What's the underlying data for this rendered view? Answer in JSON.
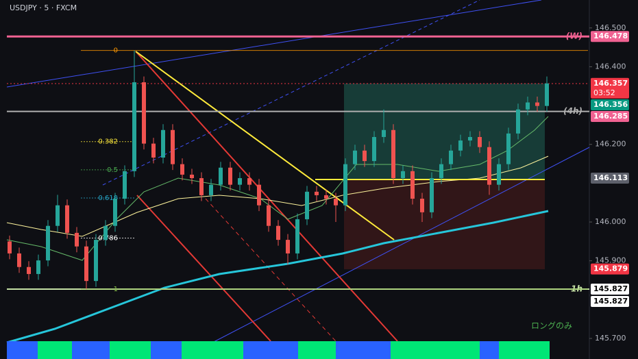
{
  "chart_data": {
    "type": "candlestick",
    "title": "USDJPY · 5 · FXCM",
    "ylim": [
      145.647,
      146.572
    ],
    "yticks": [
      {
        "value": 146.5,
        "label": "146.500"
      },
      {
        "value": 146.4,
        "label": "146.400"
      },
      {
        "value": 146.2,
        "label": "146.200"
      },
      {
        "value": 146.0,
        "label": "146.000"
      },
      {
        "value": 145.9,
        "label": "145.900"
      },
      {
        "value": 145.7,
        "label": "145.700"
      }
    ],
    "up_color": "#26a69a",
    "down_color": "#ef5350",
    "candles": [
      [
        145.95,
        145.965,
        145.904,
        145.919
      ],
      [
        145.919,
        145.934,
        145.869,
        145.884
      ],
      [
        145.884,
        145.899,
        145.851,
        145.866
      ],
      [
        145.866,
        145.916,
        145.851,
        145.901
      ],
      [
        145.901,
        146.005,
        145.886,
        145.99
      ],
      [
        145.99,
        146.07,
        145.975,
        146.043
      ],
      [
        146.043,
        146.058,
        145.957,
        145.972
      ],
      [
        145.972,
        145.987,
        145.922,
        145.937
      ],
      [
        145.937,
        145.952,
        145.827,
        145.848
      ],
      [
        145.848,
        145.969,
        145.833,
        145.954
      ],
      [
        145.954,
        146.005,
        145.939,
        145.99
      ],
      [
        145.99,
        146.075,
        145.975,
        146.06
      ],
      [
        146.06,
        146.146,
        146.045,
        146.131
      ],
      [
        146.131,
        146.442,
        146.116,
        146.36
      ],
      [
        146.36,
        146.375,
        146.187,
        146.202
      ],
      [
        146.202,
        146.217,
        146.151,
        146.166
      ],
      [
        146.166,
        146.252,
        146.151,
        146.237
      ],
      [
        146.237,
        146.252,
        146.134,
        146.149
      ],
      [
        146.149,
        146.164,
        146.107,
        146.122
      ],
      [
        146.122,
        146.137,
        146.098,
        146.113
      ],
      [
        146.113,
        146.128,
        146.054,
        146.069
      ],
      [
        146.069,
        146.111,
        146.054,
        146.096
      ],
      [
        146.096,
        146.155,
        146.081,
        146.14
      ],
      [
        146.14,
        146.155,
        146.081,
        146.096
      ],
      [
        146.096,
        146.128,
        146.081,
        146.113
      ],
      [
        146.113,
        146.128,
        146.081,
        146.096
      ],
      [
        146.096,
        146.111,
        146.028,
        146.043
      ],
      [
        146.043,
        146.058,
        145.975,
        145.99
      ],
      [
        145.99,
        146.005,
        145.939,
        145.954
      ],
      [
        145.954,
        145.969,
        145.89,
        145.919
      ],
      [
        145.919,
        146.022,
        145.904,
        146.007
      ],
      [
        146.007,
        146.093,
        145.992,
        146.078
      ],
      [
        146.078,
        146.093,
        146.054,
        146.069
      ],
      [
        146.069,
        146.084,
        146.045,
        146.06
      ],
      [
        146.06,
        146.075,
        146.0,
        146.043
      ],
      [
        146.043,
        146.164,
        146.028,
        146.149
      ],
      [
        146.149,
        146.199,
        146.134,
        146.184
      ],
      [
        146.184,
        146.199,
        146.142,
        146.157
      ],
      [
        146.157,
        146.234,
        146.142,
        146.219
      ],
      [
        146.219,
        146.29,
        146.204,
        146.237
      ],
      [
        146.237,
        146.252,
        146.098,
        146.113
      ],
      [
        146.113,
        146.146,
        146.098,
        146.131
      ],
      [
        146.131,
        146.146,
        146.045,
        146.06
      ],
      [
        146.06,
        146.075,
        146.0,
        146.025
      ],
      [
        146.025,
        146.128,
        146.01,
        146.113
      ],
      [
        146.113,
        146.164,
        146.098,
        146.149
      ],
      [
        146.149,
        146.199,
        146.134,
        146.184
      ],
      [
        146.184,
        146.225,
        146.169,
        146.21
      ],
      [
        146.21,
        146.234,
        146.195,
        146.219
      ],
      [
        146.219,
        146.234,
        146.178,
        146.193
      ],
      [
        146.193,
        146.208,
        146.07,
        146.096
      ],
      [
        146.096,
        146.164,
        146.081,
        146.149
      ],
      [
        146.149,
        146.243,
        146.134,
        146.228
      ],
      [
        146.228,
        146.305,
        146.213,
        146.29
      ],
      [
        146.29,
        146.323,
        146.275,
        146.308
      ],
      [
        146.308,
        146.323,
        146.284,
        146.299
      ],
      [
        146.299,
        146.375,
        146.284,
        146.357
      ]
    ],
    "fib": {
      "start": 146.442,
      "end": 145.827,
      "levels": [
        0,
        0.382,
        0.5,
        0.618,
        0.786,
        1
      ],
      "colors": [
        "#ff9800",
        "#ffeb3b",
        "#4caf50",
        "#26a6c9",
        "#ffffff",
        "#8bc34a"
      ]
    },
    "level_lines": [
      {
        "label": "(W)",
        "value": 146.478,
        "color": "#f06292"
      },
      {
        "label": "(4h)",
        "value": 146.285,
        "color": "#b0b0b0"
      },
      {
        "label": "1h",
        "value": 145.827,
        "color": "#c5e1a5"
      }
    ],
    "price_labels": [
      {
        "value": 146.478,
        "color": "#f06292"
      },
      {
        "value": 146.357,
        "color": "#f23645",
        "countdown": "03:52"
      },
      {
        "value": 146.356,
        "color": "#089981"
      },
      {
        "value": 146.285,
        "color": "#f06292"
      },
      {
        "value": 146.113,
        "color": "#5d606b"
      },
      {
        "value": 145.879,
        "color": "#f23645"
      },
      {
        "value": 145.827,
        "color": "#ffffff"
      },
      {
        "value": 145.827,
        "color": "#ffffff"
      }
    ],
    "annotation": "ロングのみ"
  }
}
